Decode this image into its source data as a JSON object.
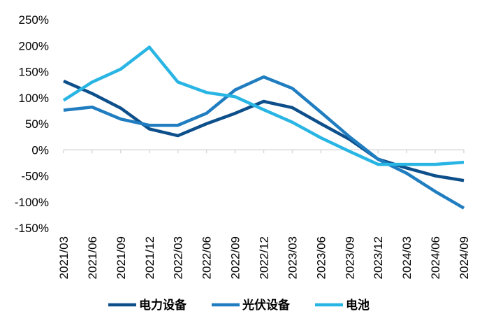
{
  "chart_data": {
    "type": "line",
    "categories": [
      "2021/03",
      "2021/06",
      "2021/09",
      "2021/12",
      "2022/03",
      "2022/06",
      "2022/09",
      "2022/12",
      "2023/03",
      "2023/06",
      "2023/09",
      "2023/12",
      "2024/03",
      "2024/06",
      "2024/09"
    ],
    "series": [
      {
        "name": "电力设备",
        "color": "#0d4f8b",
        "values": [
          132,
          108,
          80,
          40,
          27,
          50,
          70,
          93,
          81,
          50,
          20,
          -18,
          -35,
          -50,
          -59
        ]
      },
      {
        "name": "光伏设备",
        "color": "#1f7dc0",
        "values": [
          76,
          82,
          59,
          47,
          47,
          70,
          115,
          140,
          118,
          72,
          25,
          -18,
          -45,
          -80,
          -112
        ]
      },
      {
        "name": "电池",
        "color": "#29b5e4",
        "values": [
          95,
          130,
          155,
          197,
          130,
          110,
          102,
          77,
          53,
          23,
          -3,
          -28,
          -28,
          -28,
          -24
        ]
      }
    ],
    "y_ticks": [
      "250%",
      "200%",
      "150%",
      "100%",
      "50%",
      "0%",
      "-50%",
      "-100%",
      "-150%"
    ],
    "ylim": [
      -150,
      250
    ],
    "grid": false,
    "legend_position": "bottom"
  }
}
